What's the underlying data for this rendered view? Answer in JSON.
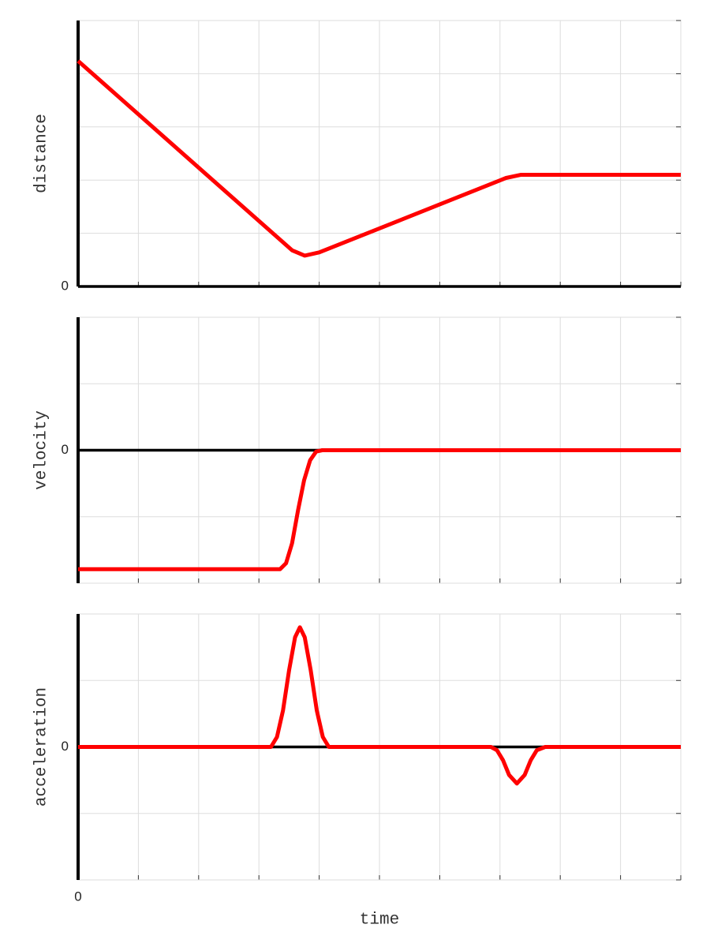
{
  "chart_data": [
    {
      "type": "line",
      "ylabel": "distance",
      "xlim": [
        0,
        10
      ],
      "ylim": [
        0,
        5
      ],
      "xgrid": [
        0,
        1,
        2,
        3,
        4,
        5,
        6,
        7,
        8,
        9,
        10
      ],
      "ygrid": [
        0,
        1,
        2,
        3,
        4,
        5
      ],
      "yticks": [
        0
      ],
      "grid": true,
      "zero_line": true,
      "color": "#ff0000",
      "x": [
        0,
        3.55,
        3.76,
        4.0,
        7.1,
        7.35,
        10
      ],
      "values": [
        4.24,
        0.68,
        0.58,
        0.64,
        2.04,
        2.1,
        2.1
      ]
    },
    {
      "type": "line",
      "ylabel": "velocity",
      "xlim": [
        0,
        10
      ],
      "ylim": [
        -2,
        2
      ],
      "xgrid": [
        0,
        1,
        2,
        3,
        4,
        5,
        6,
        7,
        8,
        9,
        10
      ],
      "ygrid": [
        -2,
        -1,
        0,
        1,
        2
      ],
      "yticks": [
        0
      ],
      "grid": true,
      "zero_line": true,
      "color": "#ff0000",
      "x": [
        0,
        3.35,
        3.45,
        3.55,
        3.65,
        3.75,
        3.85,
        3.95,
        4.05,
        10
      ],
      "values": [
        -1.79,
        -1.79,
        -1.7,
        -1.4,
        -0.9,
        -0.45,
        -0.15,
        -0.02,
        0,
        0
      ]
    },
    {
      "type": "line",
      "ylabel": "acceleration",
      "xlabel": "time",
      "xlim": [
        0,
        10
      ],
      "ylim": [
        -2,
        2
      ],
      "xgrid": [
        0,
        1,
        2,
        3,
        4,
        5,
        6,
        7,
        8,
        9,
        10
      ],
      "ygrid": [
        -2,
        -1,
        0,
        1,
        2
      ],
      "yticks": [
        0
      ],
      "xticks": [
        0
      ],
      "grid": true,
      "zero_line": true,
      "color": "#ff0000",
      "x": [
        0,
        3.2,
        3.3,
        3.4,
        3.5,
        3.6,
        3.68,
        3.76,
        3.86,
        3.96,
        4.06,
        4.16,
        6.85,
        6.95,
        7.05,
        7.15,
        7.28,
        7.41,
        7.51,
        7.61,
        7.75,
        10
      ],
      "values": [
        0,
        0,
        0.15,
        0.55,
        1.15,
        1.65,
        1.8,
        1.65,
        1.15,
        0.55,
        0.15,
        0,
        0,
        -0.05,
        -0.2,
        -0.42,
        -0.55,
        -0.42,
        -0.2,
        -0.05,
        0,
        0
      ]
    }
  ]
}
